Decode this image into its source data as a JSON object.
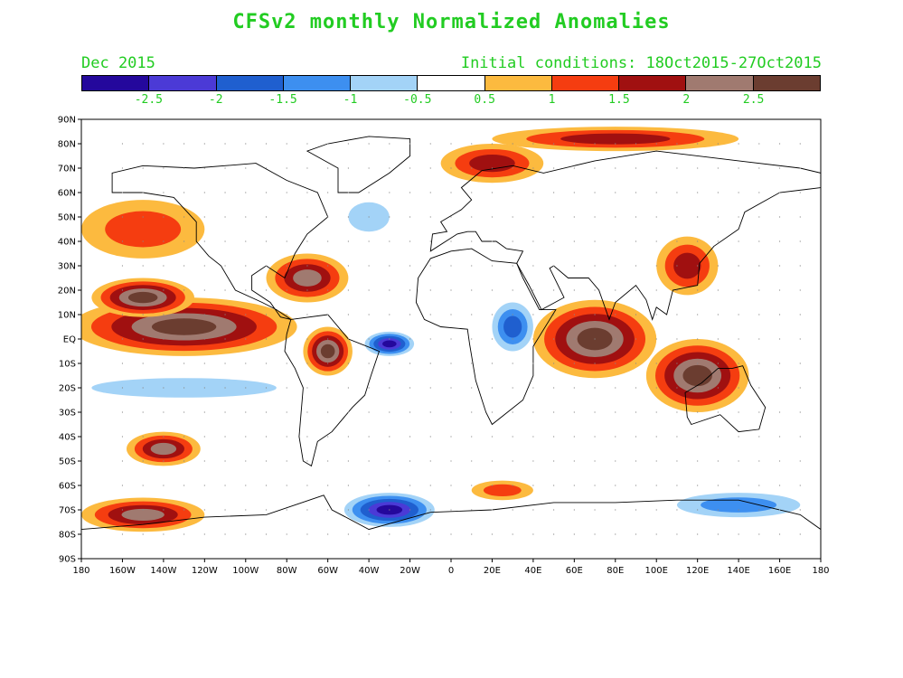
{
  "title": "CFSv2 monthly Normalized Anomalies",
  "month_label": "Dec 2015",
  "init_label": "Initial conditions: 18Oct2015-27Oct2015",
  "colorbar": {
    "colors": [
      "#24089c",
      "#4b3ad6",
      "#1f5fcf",
      "#3d8ff0",
      "#a3d3f7",
      "#ffffff",
      "#fcba3f",
      "#f53d10",
      "#a01010",
      "#a07a70",
      "#6b3d30"
    ],
    "labels": [
      "-2.5",
      "-2",
      "-1.5",
      "-1",
      "-0.5",
      "0.5",
      "1",
      "1.5",
      "2",
      "2.5"
    ]
  },
  "axes": {
    "lat_labels": [
      "90N",
      "80N",
      "70N",
      "60N",
      "50N",
      "40N",
      "30N",
      "20N",
      "10N",
      "EQ",
      "10S",
      "20S",
      "30S",
      "40S",
      "50S",
      "60S",
      "70S",
      "80S",
      "90S"
    ],
    "lon_labels": [
      "180",
      "160W",
      "140W",
      "120W",
      "100W",
      "80W",
      "60W",
      "40W",
      "20W",
      "0",
      "20E",
      "40E",
      "60E",
      "80E",
      "100E",
      "120E",
      "140E",
      "160E",
      "180"
    ]
  },
  "map": {
    "projection": "cylindrical equidistant",
    "lon_range": [
      -180,
      180
    ],
    "lat_range": [
      -90,
      90
    ],
    "grid": true,
    "coastlines": true
  },
  "anomaly_regions": [
    {
      "name": "north-pacific-warm",
      "level": 1.5,
      "lon": -150,
      "lat": 45,
      "rx": 30,
      "ry": 12
    },
    {
      "name": "east-pacific-el-nino",
      "level": 3,
      "lon": -130,
      "lat": 5,
      "rx": 55,
      "ry": 12
    },
    {
      "name": "east-pacific-el-nino-core",
      "level": 3,
      "lon": -150,
      "lat": 17,
      "rx": 25,
      "ry": 8
    },
    {
      "name": "caribbean-warm",
      "level": 2.5,
      "lon": -70,
      "lat": 25,
      "rx": 20,
      "ry": 10
    },
    {
      "name": "amazon-warm",
      "level": 3,
      "lon": -60,
      "lat": -5,
      "rx": 12,
      "ry": 10
    },
    {
      "name": "arctic-siberia-warm",
      "level": 2,
      "lon": 20,
      "lat": 72,
      "rx": 25,
      "ry": 8
    },
    {
      "name": "arctic-north-warm",
      "level": 2,
      "lon": 80,
      "lat": 82,
      "rx": 60,
      "ry": 5
    },
    {
      "name": "south-pacific-warm",
      "level": 2.5,
      "lon": -140,
      "lat": -45,
      "rx": 18,
      "ry": 7
    },
    {
      "name": "south-ocean-warm",
      "level": 2.5,
      "lon": -150,
      "lat": -72,
      "rx": 30,
      "ry": 7
    },
    {
      "name": "indian-ocean-warm",
      "level": 3,
      "lon": 70,
      "lat": 0,
      "rx": 30,
      "ry": 16
    },
    {
      "name": "australia-warm",
      "level": 3,
      "lon": 120,
      "lat": -15,
      "rx": 25,
      "ry": 15
    },
    {
      "name": "east-asia-warm",
      "level": 2,
      "lon": 115,
      "lat": 30,
      "rx": 15,
      "ry": 12
    },
    {
      "name": "south-atlantic-warm",
      "level": 1.5,
      "lon": 25,
      "lat": -62,
      "rx": 15,
      "ry": 4
    },
    {
      "name": "atlantic-cold",
      "level": -3,
      "lon": -30,
      "lat": -2,
      "rx": 12,
      "ry": 5
    },
    {
      "name": "north-atlantic-cold",
      "level": -1,
      "lon": -40,
      "lat": 50,
      "rx": 10,
      "ry": 6
    },
    {
      "name": "africa-cold",
      "level": -2,
      "lon": 30,
      "lat": 5,
      "rx": 10,
      "ry": 10
    },
    {
      "name": "antarctic-cold",
      "level": -3,
      "lon": -30,
      "lat": -70,
      "rx": 22,
      "ry": 7
    },
    {
      "name": "antarctic-cold-east",
      "level": -1.5,
      "lon": 140,
      "lat": -68,
      "rx": 30,
      "ry": 5
    },
    {
      "name": "south-pacific-cold",
      "level": -1,
      "lon": -130,
      "lat": -20,
      "rx": 45,
      "ry": 4
    }
  ]
}
